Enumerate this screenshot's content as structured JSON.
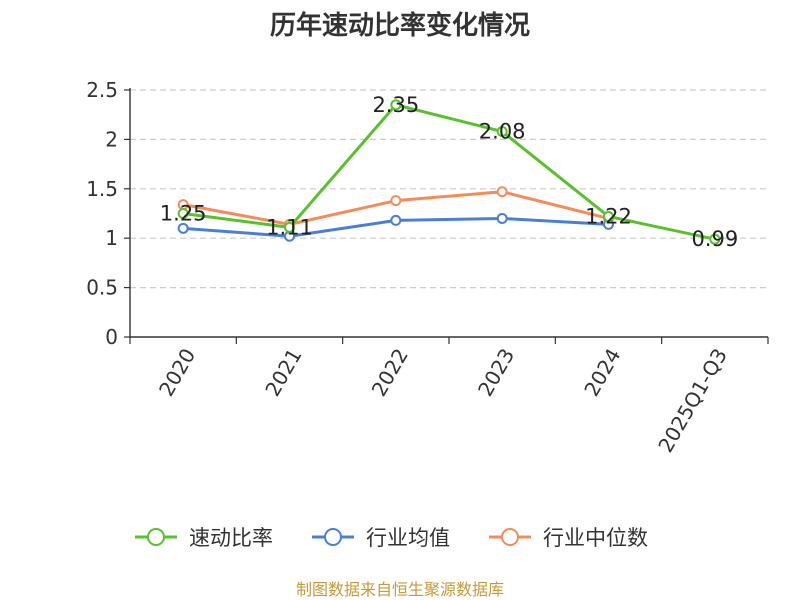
{
  "chart_data": {
    "type": "line",
    "title": "历年速动比率变化情况",
    "categories": [
      "2020",
      "2021",
      "2022",
      "2023",
      "2024",
      "2025Q1-Q3"
    ],
    "ylim": [
      0,
      2.5
    ],
    "yticks": [
      "0",
      "0.5",
      "1",
      "1.5",
      "2",
      "2.5"
    ],
    "grid": "horizontal-dashed",
    "legend_position": "bottom",
    "series": [
      {
        "name": "速动比率",
        "color": "#5ac12e",
        "values": [
          1.25,
          1.11,
          2.35,
          2.08,
          1.22,
          0.99
        ],
        "labels": [
          "1.25",
          "1.11",
          "2.35",
          "2.08",
          "1.22",
          "0.99"
        ]
      },
      {
        "name": "行业均值",
        "color": "#4a7fd8",
        "values": [
          1.1,
          1.02,
          1.18,
          1.2,
          1.14,
          null
        ]
      },
      {
        "name": "行业中位数",
        "color": "#f48c5a",
        "values": [
          1.34,
          1.14,
          1.38,
          1.47,
          1.2,
          null
        ]
      }
    ],
    "source": "制图数据来自恒生聚源数据库"
  }
}
